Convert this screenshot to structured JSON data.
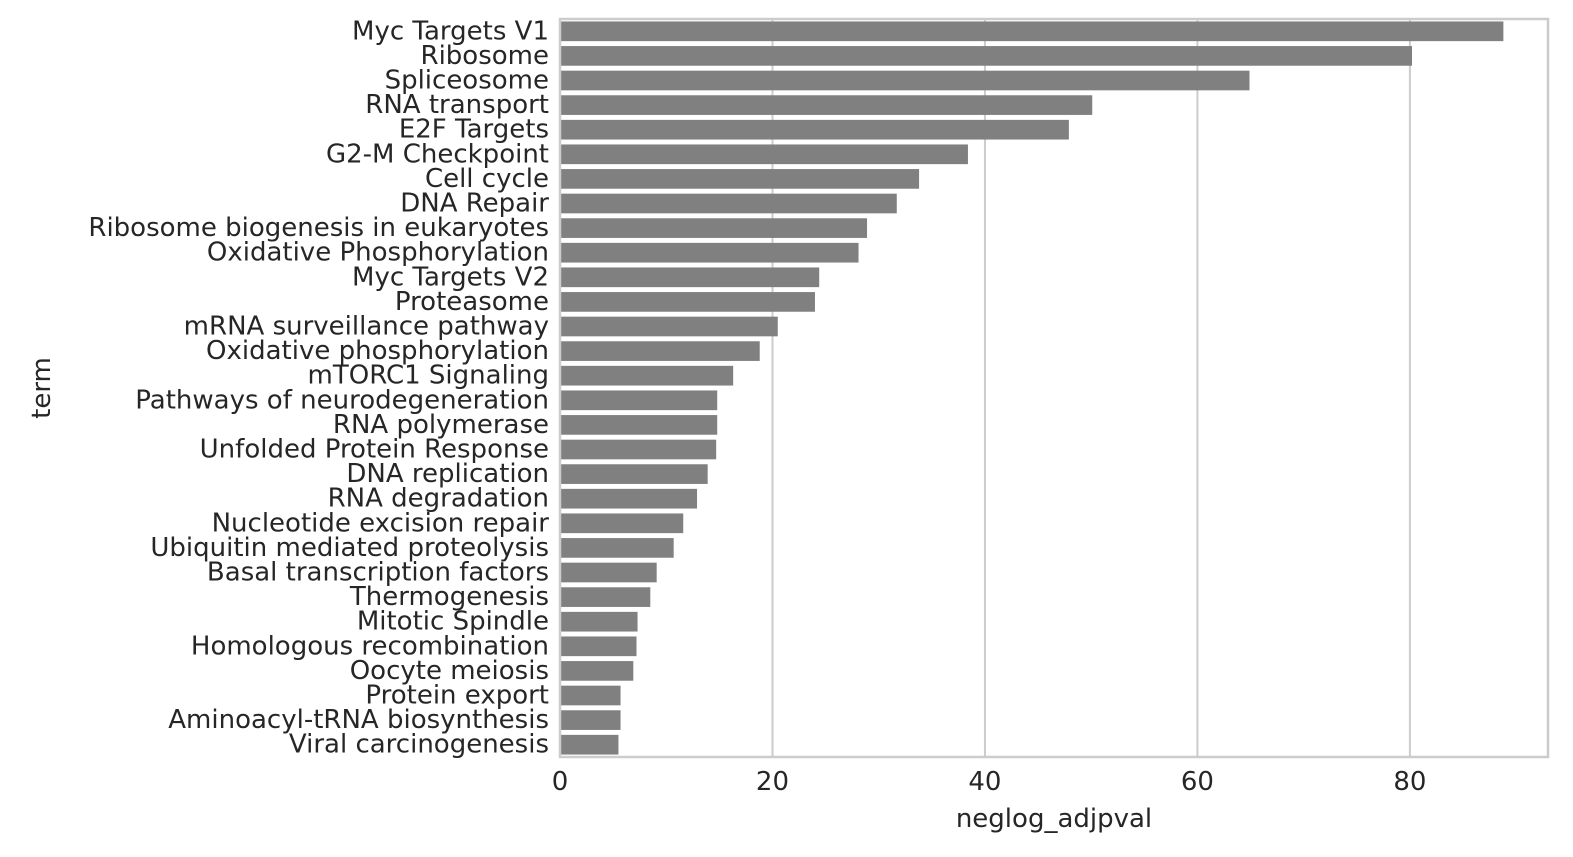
{
  "chart_data": {
    "type": "bar",
    "orientation": "horizontal",
    "categories": [
      "Myc Targets V1",
      "Ribosome",
      "Spliceosome",
      "RNA transport",
      "E2F Targets",
      "G2-M Checkpoint",
      "Cell cycle",
      "DNA Repair",
      "Ribosome biogenesis in eukaryotes",
      "Oxidative Phosphorylation",
      "Myc Targets V2",
      "Proteasome",
      "mRNA surveillance pathway",
      "Oxidative phosphorylation",
      "mTORC1 Signaling",
      "Pathways of neurodegeneration",
      "RNA polymerase",
      "Unfolded Protein Response",
      "DNA replication",
      "RNA degradation",
      "Nucleotide excision repair",
      "Ubiquitin mediated proteolysis",
      "Basal transcription factors",
      "Thermogenesis",
      "Mitotic Spindle",
      "Homologous recombination",
      "Oocyte meiosis",
      "Protein export",
      "Aminoacyl-tRNA biosynthesis",
      "Viral carcinogenesis"
    ],
    "values": [
      88.8,
      80.2,
      64.9,
      50.1,
      47.9,
      38.4,
      33.8,
      31.7,
      28.9,
      28.1,
      24.4,
      24.0,
      20.5,
      18.8,
      16.3,
      14.8,
      14.8,
      14.7,
      13.9,
      12.9,
      11.6,
      10.7,
      9.1,
      8.5,
      7.3,
      7.2,
      6.9,
      5.7,
      5.7,
      5.5
    ],
    "xlabel": "neglog_adjpval",
    "ylabel": "term",
    "xlim": [
      0,
      93
    ],
    "xticks": [
      0,
      20,
      40,
      60,
      80
    ],
    "grid": true,
    "bar_color": "#808080",
    "grid_color": "#cccccc",
    "spine_color": "#cccccc"
  }
}
